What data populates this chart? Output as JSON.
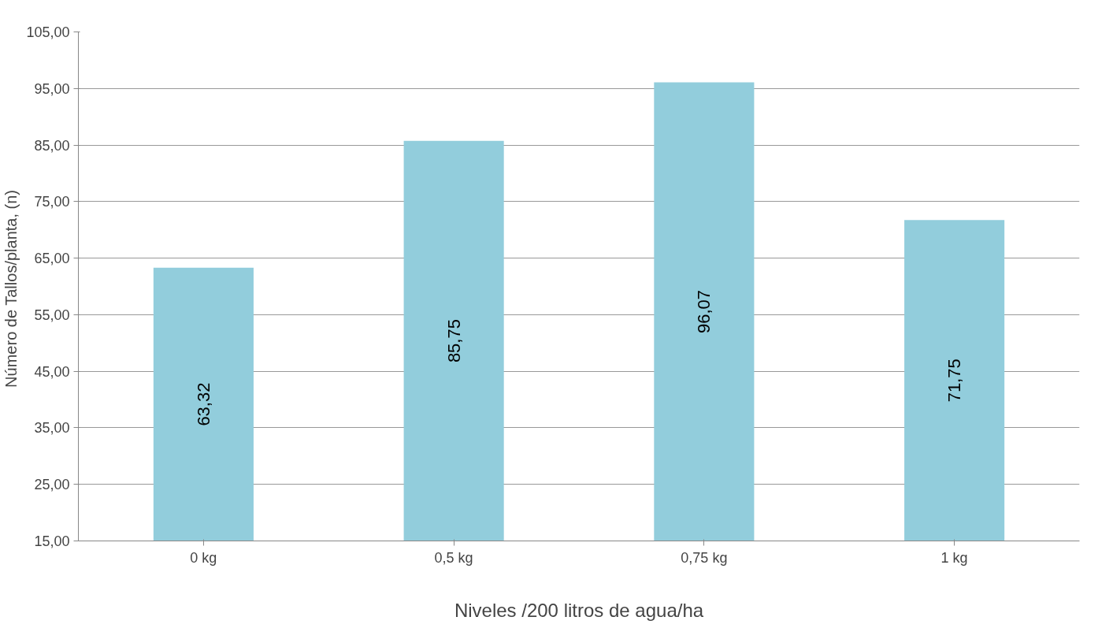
{
  "chart_data": {
    "type": "bar",
    "xlabel": "Niveles /200 litros de agua/ha",
    "ylabel": "Número  de Tallos/planta, (n)",
    "categories": [
      "0 kg",
      "0,5 kg",
      "0,75 kg",
      "1 kg"
    ],
    "values": [
      63.32,
      85.75,
      96.07,
      71.75
    ],
    "value_labels": [
      "63,32",
      "85,75",
      "96,07",
      "71,75"
    ],
    "color": "#92cddc",
    "ylim": [
      15,
      105
    ],
    "yticks": [
      {
        "value": 15,
        "label": "15,00"
      },
      {
        "value": 25,
        "label": "25,00"
      },
      {
        "value": 35,
        "label": "35,00"
      },
      {
        "value": 45,
        "label": "45,00"
      },
      {
        "value": 55,
        "label": "55,00"
      },
      {
        "value": 65,
        "label": "65,00"
      },
      {
        "value": 75,
        "label": "75,00"
      },
      {
        "value": 85,
        "label": "85,00"
      },
      {
        "value": 95,
        "label": "95,00"
      },
      {
        "value": 105,
        "label": "105,00"
      }
    ],
    "grid": "y"
  }
}
